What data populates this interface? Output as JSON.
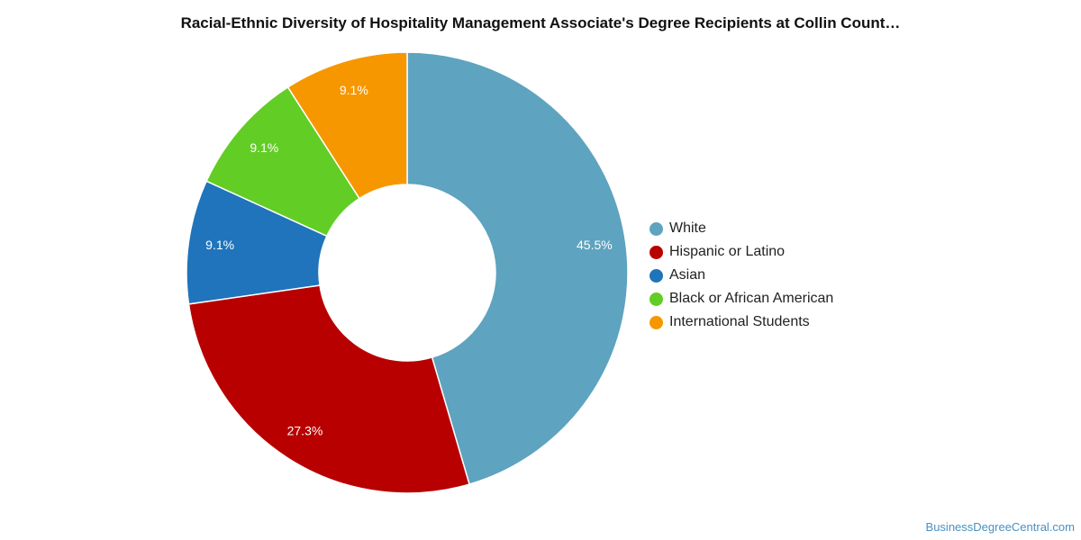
{
  "chart_data": {
    "type": "pie",
    "title": "Racial-Ethnic Diversity of Hospitality Management Associate's Degree Recipients at Collin Count…",
    "donut": true,
    "legend_position": "right",
    "categories": [
      "White",
      "Hispanic or Latino",
      "Asian",
      "Black or African American",
      "International Students"
    ],
    "values": [
      45.5,
      27.3,
      9.1,
      9.1,
      9.1
    ],
    "labels": [
      "45.5%",
      "27.3%",
      "9.1%",
      "9.1%",
      "9.1%"
    ],
    "colors": [
      "#5ea3bf",
      "#b80000",
      "#1f74bb",
      "#62cd25",
      "#f79700"
    ]
  },
  "watermark": "BusinessDegreeCentral.com"
}
